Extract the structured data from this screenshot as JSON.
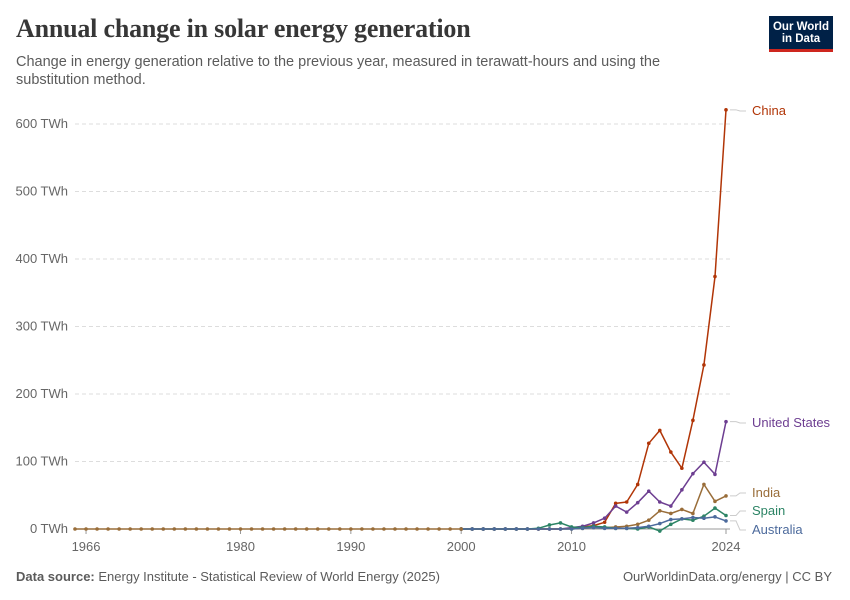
{
  "header": {
    "title": "Annual change in solar energy generation",
    "subtitle": "Change in energy generation relative to the previous year, measured in terawatt-hours and using the substitution method.",
    "logo_line1": "Our World",
    "logo_line2": "in Data"
  },
  "footer": {
    "source_label": "Data source:",
    "source_text": "Energy Institute - Statistical Review of World Energy (2025)",
    "credit": "OurWorldinData.org/energy | CC BY"
  },
  "colors": {
    "China": "#b13507",
    "United States": "#6d3e91",
    "India": "#996d39",
    "Spain": "#2c8465",
    "Australia": "#4c6a9c",
    "grid": "#dddddd",
    "axis_text": "#666666"
  },
  "chart_data": {
    "type": "line",
    "title": "Annual change in solar energy generation",
    "ylabel": "",
    "xlabel": "",
    "ylim": [
      0,
      600
    ],
    "xlim": [
      1966,
      2025
    ],
    "y_ticks": [
      0,
      100,
      200,
      300,
      400,
      500,
      600
    ],
    "y_tick_labels": [
      "0 TWh",
      "100 TWh",
      "200 TWh",
      "300 TWh",
      "400 TWh",
      "500 TWh",
      "600 TWh"
    ],
    "x_ticks": [
      1966,
      1980,
      1990,
      2000,
      2010,
      2024
    ],
    "x_tick_labels": [
      "1966",
      "1980",
      "1990",
      "2000",
      "2010",
      "2024"
    ],
    "grid": "horizontal dashed",
    "legend": "line-end labels on the right",
    "series": [
      {
        "name": "China",
        "x": [
          2000,
          2001,
          2002,
          2003,
          2004,
          2005,
          2006,
          2007,
          2008,
          2009,
          2010,
          2011,
          2012,
          2013,
          2014,
          2015,
          2016,
          2017,
          2018,
          2019,
          2020,
          2021,
          2022,
          2023,
          2024
        ],
        "y": [
          0,
          0,
          0,
          0,
          0,
          0,
          0,
          0,
          0,
          0,
          1,
          3,
          5,
          10,
          38,
          40,
          66,
          127,
          146,
          114,
          90,
          161,
          243,
          374,
          621
        ]
      },
      {
        "name": "United States",
        "x": [
          2000,
          2001,
          2002,
          2003,
          2004,
          2005,
          2006,
          2007,
          2008,
          2009,
          2010,
          2011,
          2012,
          2013,
          2014,
          2015,
          2016,
          2017,
          2018,
          2019,
          2020,
          2021,
          2022,
          2023,
          2024
        ],
        "y": [
          0,
          0,
          0,
          0,
          0,
          0,
          0,
          0,
          0,
          0,
          2,
          4,
          9,
          16,
          34,
          25,
          39,
          56,
          40,
          34,
          58,
          82,
          99,
          81,
          159
        ]
      },
      {
        "name": "India",
        "x": [
          2000,
          2001,
          2002,
          2003,
          2004,
          2005,
          2006,
          2007,
          2008,
          2009,
          2010,
          2011,
          2012,
          2013,
          2014,
          2015,
          2016,
          2017,
          2018,
          2019,
          2020,
          2021,
          2022,
          2023,
          2024
        ],
        "y": [
          0,
          0,
          0,
          0,
          0,
          0,
          0,
          0,
          0,
          0,
          0,
          1,
          2,
          2,
          3,
          4,
          7,
          13,
          27,
          23,
          29,
          23,
          66,
          41,
          49
        ]
      },
      {
        "name": "Spain",
        "x": [
          2000,
          2001,
          2002,
          2003,
          2004,
          2005,
          2006,
          2007,
          2008,
          2009,
          2010,
          2011,
          2012,
          2013,
          2014,
          2015,
          2016,
          2017,
          2018,
          2019,
          2020,
          2021,
          2022,
          2023,
          2024
        ],
        "y": [
          0,
          0,
          0,
          0,
          0,
          0,
          0,
          1,
          6,
          9,
          3,
          2,
          4,
          3,
          1,
          1,
          0,
          3,
          -3,
          7,
          15,
          13,
          19,
          31,
          20
        ]
      },
      {
        "name": "Australia",
        "x": [
          2000,
          2001,
          2002,
          2003,
          2004,
          2005,
          2006,
          2007,
          2008,
          2009,
          2010,
          2011,
          2012,
          2013,
          2014,
          2015,
          2016,
          2017,
          2018,
          2019,
          2020,
          2021,
          2022,
          2023,
          2024
        ],
        "y": [
          0,
          0,
          0,
          0,
          0,
          0,
          0,
          0,
          0,
          0,
          0,
          1,
          2,
          1,
          1,
          1,
          2,
          4,
          8,
          14,
          15,
          17,
          16,
          18,
          12
        ]
      },
      {
        "name": "_baseline",
        "x": [
          1965,
          1966,
          1967,
          1968,
          1969,
          1970,
          1971,
          1972,
          1973,
          1974,
          1975,
          1976,
          1977,
          1978,
          1979,
          1980,
          1981,
          1982,
          1983,
          1984,
          1985,
          1986,
          1987,
          1988,
          1989,
          1990,
          1991,
          1992,
          1993,
          1994,
          1995,
          1996,
          1997,
          1998,
          1999,
          2000
        ],
        "y": [
          0,
          0,
          0,
          0,
          0,
          0,
          0,
          0,
          0,
          0,
          0,
          0,
          0,
          0,
          0,
          0,
          0,
          0,
          0,
          0,
          0,
          0,
          0,
          0,
          0,
          0,
          0,
          0,
          0,
          0,
          0,
          0,
          0,
          0,
          0,
          0
        ]
      }
    ]
  }
}
